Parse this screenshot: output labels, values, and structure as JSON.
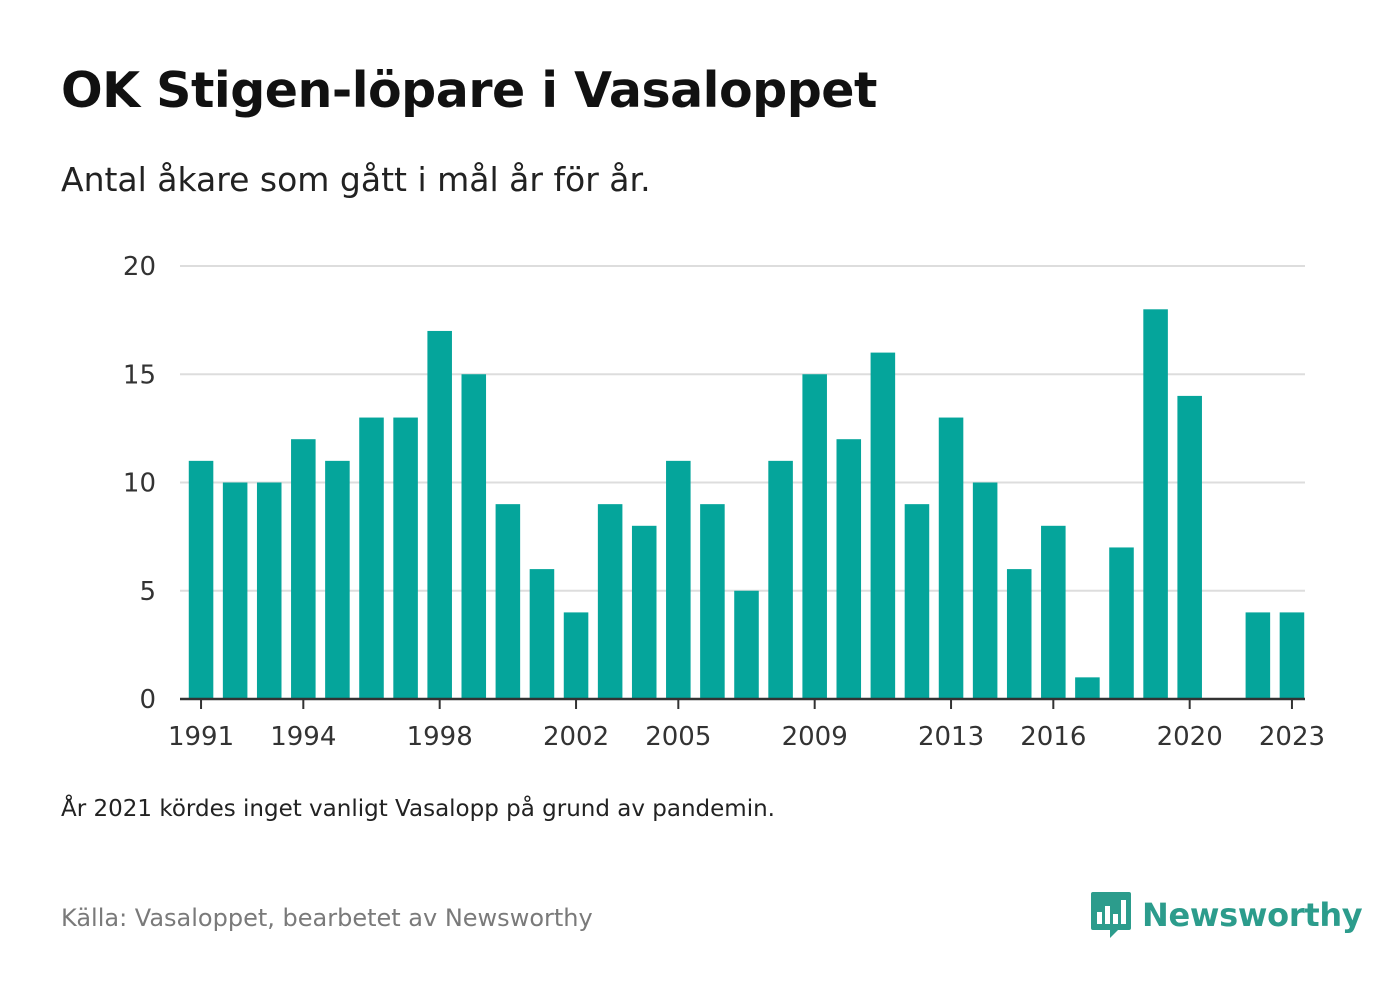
{
  "title": "OK Stigen-löpare i Vasaloppet",
  "subtitle": "Antal åkare som gått i mål år för år.",
  "note": "År 2021 kördes inget vanligt Vasalopp på grund av pandemin.",
  "source": "Källa: Vasaloppet, bearbetet av Newsworthy",
  "brand": {
    "name": "Newsworthy",
    "icon": "newsworthy-logo-icon",
    "color": "#2c9c8c"
  },
  "colors": {
    "bar": "#05a59b",
    "grid": "#dddddd",
    "axis": "#333333"
  },
  "chart_data": {
    "type": "bar",
    "x": [
      1991,
      1992,
      1993,
      1994,
      1995,
      1996,
      1997,
      1998,
      1999,
      2000,
      2001,
      2002,
      2003,
      2004,
      2005,
      2006,
      2007,
      2008,
      2009,
      2010,
      2011,
      2012,
      2013,
      2014,
      2015,
      2016,
      2017,
      2018,
      2019,
      2020,
      2021,
      2022,
      2023
    ],
    "values": [
      11,
      10,
      10,
      12,
      11,
      13,
      13,
      17,
      15,
      9,
      6,
      4,
      9,
      8,
      11,
      9,
      5,
      11,
      15,
      12,
      16,
      9,
      13,
      10,
      6,
      8,
      1,
      7,
      18,
      14,
      null,
      4,
      4
    ],
    "x_ticks": [
      1991,
      1994,
      1998,
      2002,
      2005,
      2009,
      2013,
      2016,
      2020,
      2023
    ],
    "y_ticks": [
      0,
      5,
      10,
      15,
      20
    ],
    "ylim": [
      0,
      20
    ],
    "xlabel": "",
    "ylabel": "",
    "grid": true,
    "legend": "none"
  }
}
